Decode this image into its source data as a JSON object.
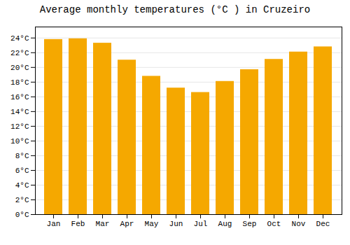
{
  "chart_data": {
    "type": "bar",
    "title": "Average monthly temperatures (°C ) in Cruzeiro",
    "categories": [
      "Jan",
      "Feb",
      "Mar",
      "Apr",
      "May",
      "Jun",
      "Jul",
      "Aug",
      "Sep",
      "Oct",
      "Nov",
      "Dec"
    ],
    "values": [
      23.8,
      23.9,
      23.3,
      21.0,
      18.8,
      17.2,
      16.6,
      18.1,
      19.7,
      21.1,
      22.1,
      22.8
    ],
    "color": "#F5A800",
    "ylim": [
      0,
      25.5
    ],
    "yticks": [
      {
        "value": 0,
        "label": "0°C"
      },
      {
        "value": 2,
        "label": "2°C"
      },
      {
        "value": 4,
        "label": "4°C"
      },
      {
        "value": 6,
        "label": "6°C"
      },
      {
        "value": 8,
        "label": "8°C"
      },
      {
        "value": 10,
        "label": "10°C"
      },
      {
        "value": 12,
        "label": "12°C"
      },
      {
        "value": 14,
        "label": "14°C"
      },
      {
        "value": 16,
        "label": "16°C"
      },
      {
        "value": 18,
        "label": "18°C"
      },
      {
        "value": 20,
        "label": "20°C"
      },
      {
        "value": 22,
        "label": "22°C"
      },
      {
        "value": 24,
        "label": "24°C"
      }
    ],
    "grid": true
  }
}
